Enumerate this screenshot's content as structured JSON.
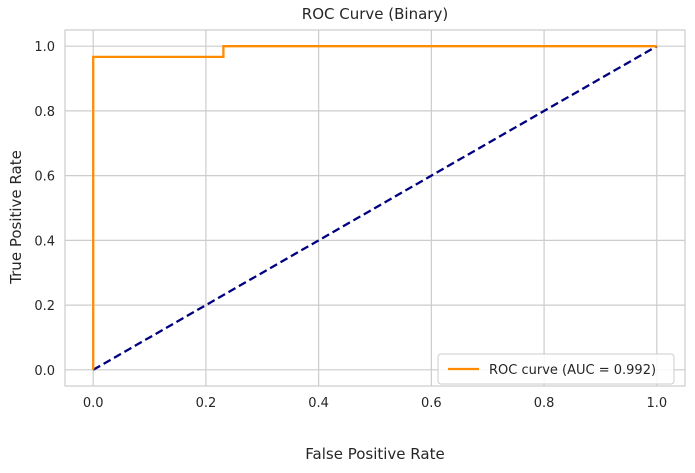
{
  "chart_data": {
    "type": "line",
    "title": "ROC Curve (Binary)",
    "xlabel": "False Positive Rate",
    "ylabel": "True Positive Rate",
    "xlim": [
      -0.05,
      1.05
    ],
    "ylim": [
      -0.05,
      1.05
    ],
    "xticks": [
      0.0,
      0.2,
      0.4,
      0.6,
      0.8,
      1.0
    ],
    "yticks": [
      0.0,
      0.2,
      0.4,
      0.6,
      0.8,
      1.0
    ],
    "xtick_labels": [
      "0.0",
      "0.2",
      "0.4",
      "0.6",
      "0.8",
      "1.0"
    ],
    "ytick_labels": [
      "0.0",
      "0.2",
      "0.4",
      "0.6",
      "0.8",
      "1.0"
    ],
    "grid": true,
    "legend_position": "bottom-right",
    "series": [
      {
        "name": "ROC curve (AUC = 0.992)",
        "color": "#ff8c00",
        "style": "solid",
        "x": [
          0.0,
          0.0,
          0.0,
          0.231,
          0.231,
          1.0
        ],
        "y": [
          0.0,
          0.0,
          0.967,
          0.967,
          1.0,
          1.0
        ]
      },
      {
        "name": "",
        "color": "#000080",
        "style": "dashed",
        "x": [
          0.0,
          1.0
        ],
        "y": [
          0.0,
          1.0
        ]
      }
    ]
  }
}
